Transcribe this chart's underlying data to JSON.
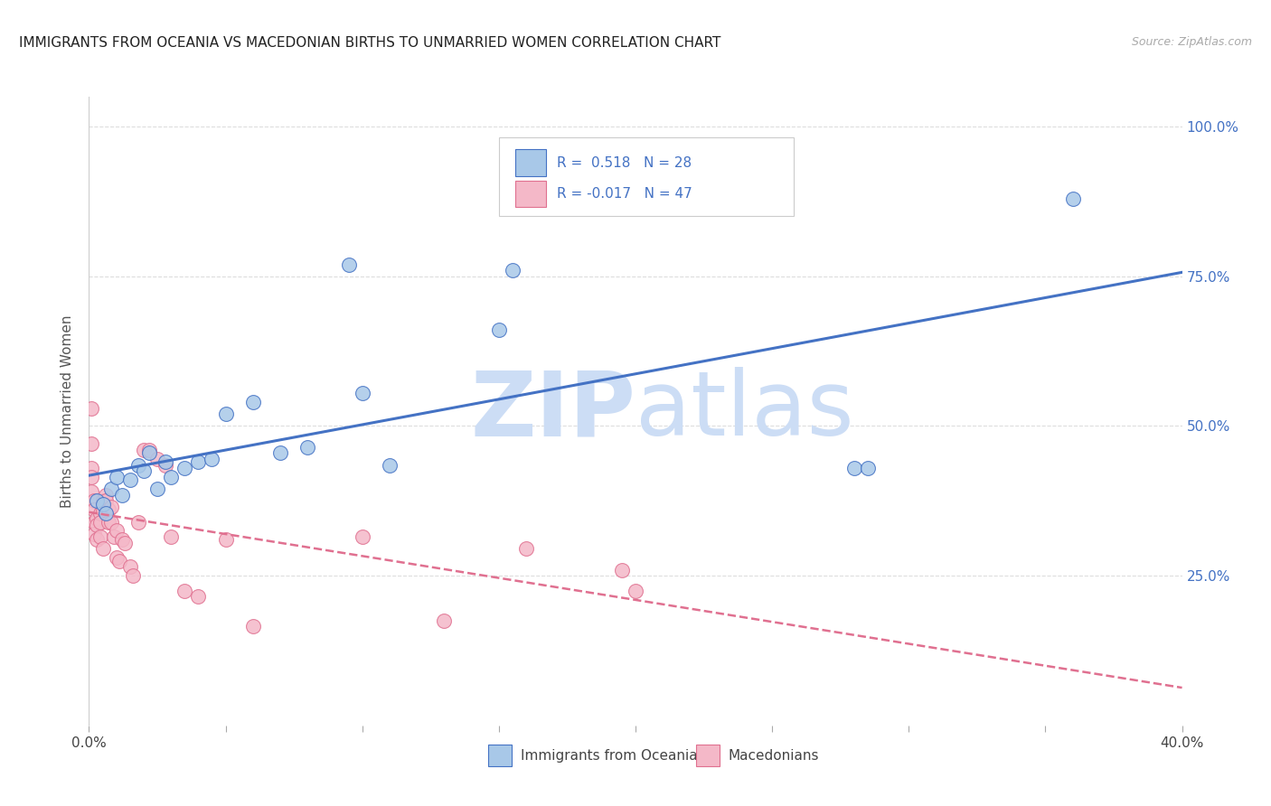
{
  "title": "IMMIGRANTS FROM OCEANIA VS MACEDONIAN BIRTHS TO UNMARRIED WOMEN CORRELATION CHART",
  "source": "Source: ZipAtlas.com",
  "ylabel": "Births to Unmarried Women",
  "legend_label1": "Immigrants from Oceania",
  "legend_label2": "Macedonians",
  "r1": 0.518,
  "n1": 28,
  "r2": -0.017,
  "n2": 47,
  "xmin": 0.0,
  "xmax": 0.4,
  "ymin": 0.0,
  "ymax": 1.05,
  "yticks": [
    0.25,
    0.5,
    0.75,
    1.0
  ],
  "xticks": [
    0.0,
    0.05,
    0.1,
    0.15,
    0.2,
    0.25,
    0.3,
    0.35,
    0.4
  ],
  "xtick_labels_show": [
    "0.0%",
    "",
    "",
    "",
    "",
    "",
    "",
    "",
    "40.0%"
  ],
  "ytick_labels": [
    "25.0%",
    "50.0%",
    "75.0%",
    "100.0%"
  ],
  "color_blue": "#a8c8e8",
  "color_blue_line": "#4472c4",
  "color_pink": "#f4b8c8",
  "color_pink_line": "#e07090",
  "watermark_zip": "ZIP",
  "watermark_atlas": "atlas",
  "watermark_color": "#ccddf5",
  "blue_x": [
    0.003,
    0.005,
    0.006,
    0.008,
    0.01,
    0.012,
    0.015,
    0.018,
    0.02,
    0.022,
    0.025,
    0.028,
    0.03,
    0.035,
    0.04,
    0.045,
    0.05,
    0.06,
    0.07,
    0.08,
    0.095,
    0.1,
    0.11,
    0.15,
    0.155,
    0.28,
    0.285,
    0.36
  ],
  "blue_y": [
    0.375,
    0.37,
    0.355,
    0.395,
    0.415,
    0.385,
    0.41,
    0.435,
    0.425,
    0.455,
    0.395,
    0.44,
    0.415,
    0.43,
    0.44,
    0.445,
    0.52,
    0.54,
    0.455,
    0.465,
    0.77,
    0.555,
    0.435,
    0.66,
    0.76,
    0.43,
    0.43,
    0.88
  ],
  "pink_x": [
    0.001,
    0.001,
    0.001,
    0.001,
    0.001,
    0.002,
    0.002,
    0.002,
    0.002,
    0.003,
    0.003,
    0.003,
    0.004,
    0.004,
    0.004,
    0.005,
    0.005,
    0.005,
    0.006,
    0.006,
    0.007,
    0.007,
    0.008,
    0.008,
    0.009,
    0.01,
    0.01,
    0.011,
    0.012,
    0.013,
    0.015,
    0.016,
    0.018,
    0.02,
    0.022,
    0.025,
    0.028,
    0.03,
    0.035,
    0.04,
    0.05,
    0.06,
    0.1,
    0.13,
    0.16,
    0.195,
    0.2
  ],
  "pink_y": [
    0.53,
    0.47,
    0.43,
    0.415,
    0.39,
    0.375,
    0.36,
    0.34,
    0.32,
    0.345,
    0.335,
    0.31,
    0.355,
    0.34,
    0.315,
    0.375,
    0.36,
    0.295,
    0.385,
    0.375,
    0.36,
    0.34,
    0.365,
    0.34,
    0.315,
    0.325,
    0.28,
    0.275,
    0.31,
    0.305,
    0.265,
    0.25,
    0.34,
    0.46,
    0.46,
    0.445,
    0.435,
    0.315,
    0.225,
    0.215,
    0.31,
    0.165,
    0.315,
    0.175,
    0.295,
    0.26,
    0.225
  ],
  "grid_color": "#dddddd",
  "spine_color": "#cccccc"
}
